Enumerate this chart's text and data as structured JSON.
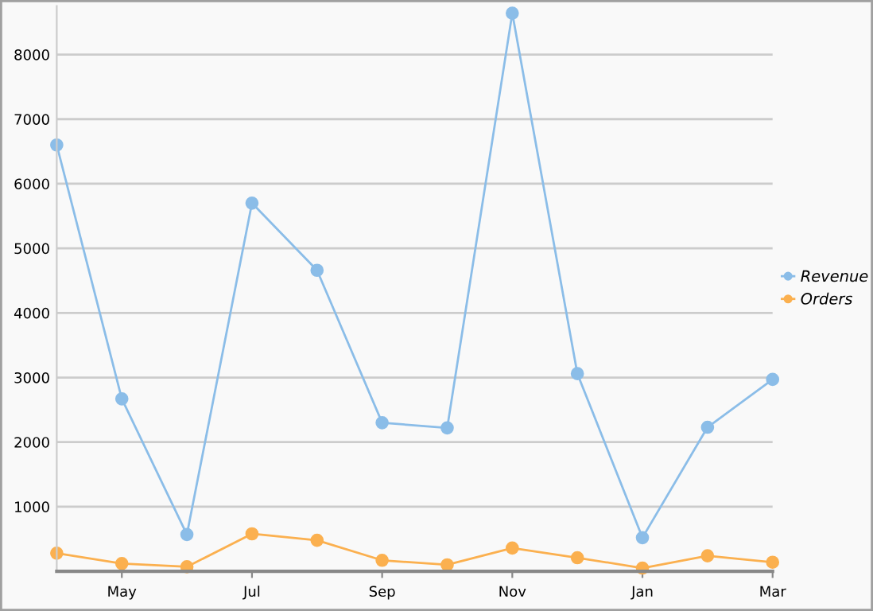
{
  "chart_data": {
    "type": "line",
    "categories": [
      null,
      "May",
      null,
      "Jul",
      null,
      "Sep",
      null,
      "Nov",
      null,
      "Jan",
      null,
      "Mar"
    ],
    "series": [
      {
        "name": "Revenue",
        "color": "#8bbde8",
        "values": [
          6600,
          2670,
          570,
          5700,
          4660,
          2300,
          2220,
          8640,
          3060,
          520,
          2230,
          2970
        ]
      },
      {
        "name": "Orders",
        "color": "#fbb04f",
        "values": [
          280,
          120,
          70,
          580,
          480,
          170,
          100,
          360,
          210,
          50,
          240,
          140
        ]
      }
    ],
    "ylim": [
      0,
      8750
    ],
    "yticks": [
      1000,
      2000,
      3000,
      4000,
      5000,
      6000,
      7000,
      8000
    ],
    "grid": "y",
    "legend": "right",
    "marker": "circle",
    "line_style": "solid"
  }
}
